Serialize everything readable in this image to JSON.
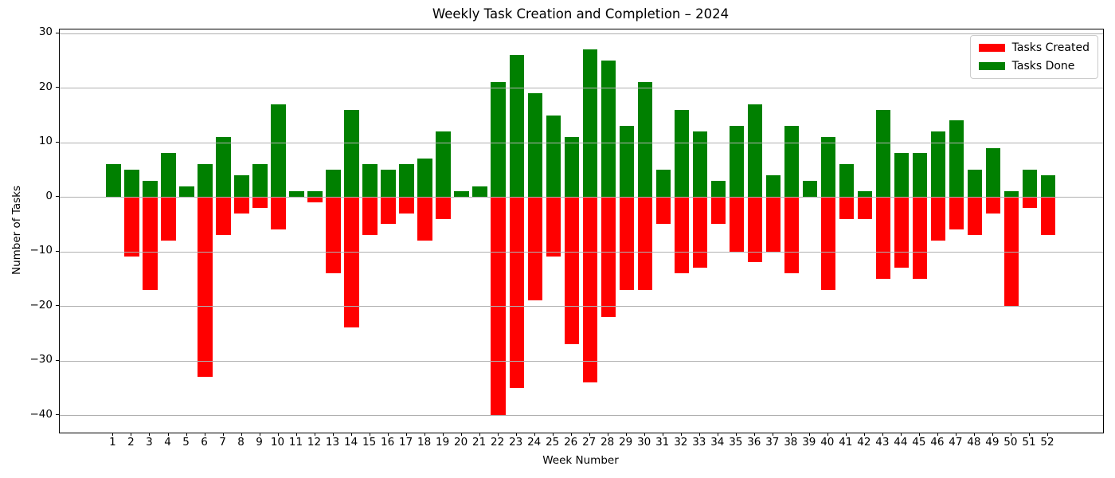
{
  "chart_data": {
    "type": "bar",
    "title": "Weekly Task Creation and Completion – 2024",
    "xlabel": "Week Number",
    "ylabel": "Number of Tasks",
    "categories": [
      1,
      2,
      3,
      4,
      5,
      6,
      7,
      8,
      9,
      10,
      11,
      12,
      13,
      14,
      15,
      16,
      17,
      18,
      19,
      20,
      21,
      22,
      23,
      24,
      25,
      26,
      27,
      28,
      29,
      30,
      31,
      32,
      33,
      34,
      35,
      36,
      37,
      38,
      39,
      40,
      41,
      42,
      43,
      44,
      45,
      46,
      47,
      48,
      49,
      50,
      51,
      52
    ],
    "series": [
      {
        "name": "Tasks Created",
        "color": "#ff0000",
        "values": [
          0,
          -11,
          -17,
          -8,
          0,
          -33,
          -7,
          -3,
          -2,
          -6,
          0,
          -1,
          -14,
          -24,
          -7,
          -5,
          -3,
          -8,
          -4,
          0,
          0,
          -40,
          -35,
          -19,
          -11,
          -27,
          -34,
          -22,
          -17,
          -17,
          -5,
          -14,
          -13,
          -5,
          -10,
          -12,
          -10,
          -14,
          0,
          -17,
          -4,
          -4,
          -15,
          -13,
          -15,
          -8,
          -6,
          -7,
          -3,
          -20,
          -2,
          -7
        ]
      },
      {
        "name": "Tasks Done",
        "color": "#008000",
        "values": [
          6,
          5,
          3,
          8,
          2,
          6,
          11,
          4,
          6,
          17,
          1,
          1,
          5,
          16,
          6,
          5,
          6,
          7,
          12,
          1,
          2,
          21,
          26,
          19,
          15,
          11,
          27,
          25,
          13,
          21,
          5,
          16,
          12,
          3,
          13,
          17,
          4,
          13,
          3,
          11,
          6,
          1,
          16,
          8,
          8,
          12,
          14,
          5,
          9,
          1,
          5,
          4
        ]
      }
    ],
    "yticks": [
      30,
      20,
      10,
      0,
      -10,
      -20,
      -30,
      -40
    ],
    "ytick_labels": [
      "30",
      "20",
      "10",
      "0",
      "−10",
      "−20",
      "−30",
      "−40"
    ],
    "ylim": [
      -43.2,
      30.7
    ],
    "xlim": [
      -1.93,
      55.0
    ],
    "bar_width_units": 0.8,
    "grid": "y",
    "grid_color": "#b0b0b0",
    "background": "#ffffff",
    "legend": {
      "position": "upper right",
      "entries": [
        {
          "label": "Tasks Created",
          "color": "#ff0000"
        },
        {
          "label": "Tasks Done",
          "color": "#008000"
        }
      ]
    }
  }
}
